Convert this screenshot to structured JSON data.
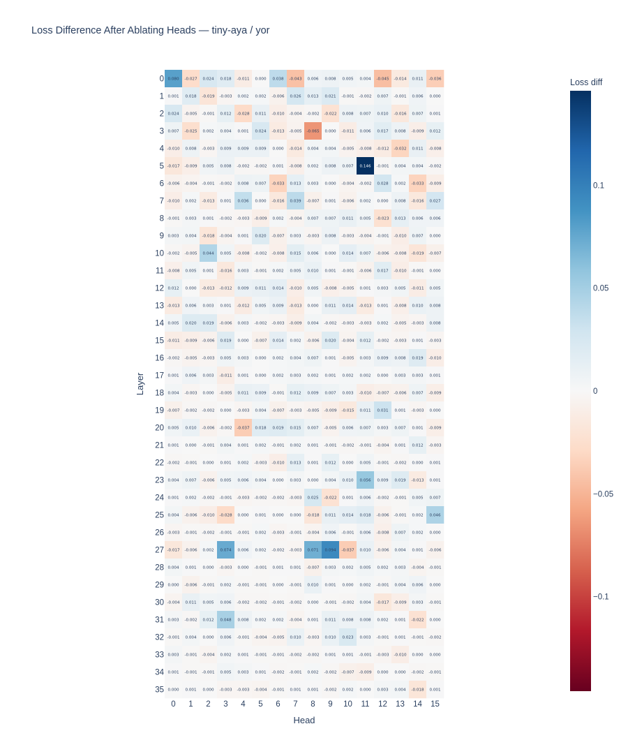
{
  "chart_data": {
    "type": "heatmap",
    "title": "Loss Difference After Ablating Heads — tiny-aya / yor",
    "xlabel": "Head",
    "ylabel": "Layer",
    "x": [
      "0",
      "1",
      "2",
      "3",
      "4",
      "5",
      "6",
      "7",
      "8",
      "9",
      "10",
      "11",
      "12",
      "13",
      "14",
      "15"
    ],
    "y": [
      "0",
      "1",
      "2",
      "3",
      "4",
      "5",
      "6",
      "7",
      "8",
      "9",
      "10",
      "11",
      "12",
      "13",
      "14",
      "15",
      "16",
      "17",
      "18",
      "19",
      "20",
      "21",
      "22",
      "23",
      "24",
      "25",
      "26",
      "27",
      "28",
      "29",
      "30",
      "31",
      "32",
      "33",
      "34",
      "35"
    ],
    "z": [
      [
        0.08,
        -0.027,
        0.024,
        0.018,
        -0.011,
        0.0,
        0.038,
        -0.043,
        0.006,
        0.008,
        0.005,
        0.004,
        -0.045,
        -0.014,
        0.011,
        -0.036
      ],
      [
        0.001,
        0.018,
        -0.019,
        -0.003,
        0.002,
        0.002,
        -0.006,
        0.026,
        0.013,
        0.021,
        -0.001,
        -0.002,
        0.007,
        -0.001,
        0.006,
        0.0
      ],
      [
        0.024,
        -0.005,
        -0.001,
        0.012,
        -0.028,
        0.011,
        -0.01,
        -0.004,
        -0.002,
        -0.022,
        0.008,
        0.007,
        0.01,
        -0.016,
        0.007,
        0.001
      ],
      [
        0.007,
        -0.025,
        0.002,
        0.004,
        0.001,
        0.024,
        -0.013,
        -0.005,
        -0.065,
        0.0,
        -0.011,
        0.006,
        0.017,
        0.008,
        -0.009,
        0.012
      ],
      [
        -0.01,
        0.008,
        -0.003,
        0.009,
        0.009,
        0.009,
        0.0,
        -0.014,
        0.004,
        0.004,
        -0.005,
        -0.008,
        -0.012,
        -0.032,
        0.011,
        -0.008
      ],
      [
        -0.017,
        -0.009,
        0.005,
        0.008,
        -0.002,
        -0.002,
        0.001,
        -0.008,
        0.002,
        0.008,
        0.007,
        0.146,
        -0.001,
        0.004,
        0.004,
        -0.002
      ],
      [
        -0.006,
        -0.004,
        -0.001,
        -0.002,
        0.008,
        0.007,
        -0.033,
        0.013,
        0.003,
        0.0,
        -0.004,
        -0.002,
        0.028,
        0.002,
        -0.033,
        -0.009
      ],
      [
        -0.01,
        0.002,
        -0.013,
        0.001,
        0.036,
        0.0,
        -0.016,
        0.039,
        -0.007,
        0.001,
        -0.006,
        0.002,
        0.0,
        0.008,
        -0.016,
        0.027
      ],
      [
        -0.001,
        0.003,
        0.001,
        -0.002,
        -0.003,
        -0.009,
        0.002,
        -0.004,
        0.007,
        0.007,
        0.011,
        0.005,
        -0.023,
        0.013,
        0.006,
        0.006
      ],
      [
        0.003,
        0.004,
        -0.018,
        -0.004,
        0.001,
        0.02,
        -0.007,
        0.003,
        -0.003,
        0.008,
        -0.003,
        -0.004,
        -0.001,
        -0.01,
        0.007,
        0.0
      ],
      [
        -0.002,
        -0.005,
        0.044,
        0.005,
        -0.008,
        -0.002,
        -0.008,
        0.015,
        0.006,
        0.0,
        0.014,
        0.007,
        -0.006,
        -0.008,
        -0.019,
        -0.007
      ],
      [
        -0.008,
        0.005,
        0.001,
        -0.016,
        0.003,
        -0.001,
        0.002,
        0.005,
        0.01,
        0.001,
        -0.001,
        -0.006,
        0.017,
        -0.01,
        -0.001,
        0.0
      ],
      [
        0.012,
        0.0,
        -0.013,
        -0.012,
        0.009,
        0.011,
        0.014,
        -0.01,
        0.005,
        -0.008,
        -0.005,
        0.001,
        0.003,
        0.005,
        -0.011,
        0.005
      ],
      [
        -0.013,
        0.006,
        0.003,
        0.001,
        -0.012,
        0.005,
        0.009,
        -0.013,
        0.0,
        0.011,
        0.014,
        -0.013,
        0.001,
        -0.008,
        0.01,
        0.008
      ],
      [
        0.005,
        0.02,
        0.019,
        -0.006,
        0.003,
        -0.002,
        -0.003,
        -0.009,
        0.004,
        -0.002,
        -0.003,
        -0.003,
        0.002,
        -0.005,
        -0.003,
        0.008
      ],
      [
        -0.011,
        -0.009,
        -0.006,
        0.019,
        0.0,
        -0.007,
        0.014,
        0.002,
        -0.006,
        0.02,
        -0.004,
        0.012,
        -0.002,
        -0.003,
        0.001,
        -0.003
      ],
      [
        -0.002,
        -0.005,
        -0.003,
        0.005,
        0.003,
        0.0,
        0.002,
        0.004,
        0.007,
        0.001,
        -0.005,
        0.003,
        0.009,
        0.008,
        0.019,
        -0.01
      ],
      [
        0.001,
        0.006,
        0.003,
        -0.011,
        0.001,
        0.0,
        0.002,
        0.003,
        0.002,
        0.001,
        0.002,
        0.002,
        0.0,
        0.003,
        0.003,
        0.001
      ],
      [
        0.004,
        -0.003,
        0.0,
        -0.005,
        0.011,
        0.009,
        -0.001,
        0.012,
        0.009,
        0.007,
        0.003,
        -0.01,
        -0.007,
        -0.006,
        0.007,
        -0.009
      ],
      [
        -0.007,
        -0.002,
        -0.002,
        0.0,
        -0.003,
        0.004,
        -0.007,
        -0.003,
        -0.005,
        -0.009,
        -0.015,
        0.011,
        0.031,
        0.001,
        -0.003,
        0.0
      ],
      [
        0.005,
        0.01,
        -0.006,
        -0.002,
        -0.037,
        0.018,
        0.019,
        0.015,
        0.007,
        -0.005,
        0.006,
        0.007,
        0.003,
        0.007,
        0.001,
        -0.009
      ],
      [
        0.001,
        0.0,
        -0.001,
        0.004,
        0.001,
        0.002,
        -0.001,
        0.002,
        0.001,
        -0.001,
        -0.002,
        -0.001,
        -0.004,
        0.001,
        0.012,
        -0.003
      ],
      [
        -0.002,
        -0.001,
        0.0,
        0.001,
        0.002,
        -0.003,
        -0.01,
        0.013,
        0.001,
        0.012,
        0.0,
        0.005,
        -0.001,
        -0.002,
        0.0,
        0.001
      ],
      [
        0.004,
        0.007,
        -0.006,
        0.005,
        0.006,
        0.004,
        0.0,
        0.003,
        0.0,
        0.004,
        0.01,
        0.056,
        0.009,
        0.019,
        -0.013,
        0.001
      ],
      [
        0.001,
        0.002,
        -0.002,
        -0.001,
        -0.003,
        -0.002,
        -0.002,
        -0.003,
        0.025,
        -0.022,
        0.001,
        0.006,
        -0.002,
        -0.001,
        0.005,
        0.007
      ],
      [
        0.004,
        -0.006,
        -0.01,
        -0.028,
        0.0,
        0.001,
        0.0,
        0.0,
        -0.018,
        0.011,
        0.014,
        0.018,
        -0.006,
        -0.001,
        0.002,
        0.046
      ],
      [
        -0.003,
        -0.001,
        -0.002,
        -0.001,
        -0.001,
        0.002,
        -0.003,
        -0.001,
        -0.004,
        0.006,
        -0.001,
        0.006,
        -0.008,
        0.007,
        0.002,
        0.0
      ],
      [
        -0.017,
        -0.006,
        0.002,
        0.074,
        0.006,
        0.002,
        -0.002,
        -0.003,
        0.071,
        0.094,
        -0.037,
        0.01,
        -0.006,
        0.004,
        0.001,
        -0.006
      ],
      [
        0.004,
        0.001,
        0.0,
        -0.003,
        0.0,
        -0.001,
        0.001,
        0.001,
        -0.007,
        0.003,
        0.002,
        0.005,
        0.002,
        0.003,
        -0.004,
        -0.001
      ],
      [
        0.0,
        -0.006,
        -0.001,
        0.002,
        -0.001,
        -0.001,
        0.0,
        -0.001,
        0.01,
        0.001,
        0.0,
        0.002,
        -0.001,
        0.004,
        0.006,
        0.0
      ],
      [
        -0.004,
        0.011,
        0.005,
        0.006,
        -0.002,
        -0.002,
        -0.001,
        -0.002,
        0.0,
        -0.001,
        -0.002,
        0.004,
        -0.017,
        -0.009,
        0.003,
        -0.001
      ],
      [
        0.003,
        -0.002,
        0.012,
        0.048,
        0.008,
        0.002,
        0.002,
        -0.004,
        0.001,
        0.011,
        0.008,
        0.008,
        0.002,
        0.001,
        -0.022,
        0.0
      ],
      [
        -0.001,
        0.004,
        0.0,
        0.006,
        -0.001,
        -0.004,
        -0.005,
        0.01,
        -0.003,
        0.01,
        0.023,
        0.003,
        -0.001,
        0.001,
        -0.001,
        -0.002
      ],
      [
        0.003,
        -0.001,
        -0.004,
        0.002,
        0.001,
        -0.001,
        -0.001,
        -0.002,
        -0.002,
        0.001,
        0.001,
        -0.001,
        -0.003,
        -0.01,
        0.0,
        0.0
      ],
      [
        0.001,
        -0.001,
        -0.001,
        0.005,
        0.003,
        0.001,
        -0.002,
        -0.001,
        0.002,
        -0.002,
        -0.007,
        -0.009,
        0.0,
        0.0,
        -0.002,
        -0.001
      ],
      [
        0.0,
        0.001,
        0.0,
        -0.003,
        -0.003,
        -0.004,
        -0.001,
        0.001,
        0.001,
        -0.002,
        0.002,
        0.0,
        0.003,
        0.004,
        -0.018,
        0.001
      ]
    ],
    "colorscale": "RdBu",
    "zmin": -0.146,
    "zmax": 0.146,
    "colorbar": {
      "title": "Loss diff",
      "ticks": [
        0.1,
        0.05,
        0,
        -0.05,
        -0.1
      ],
      "tick_labels": [
        "0.1",
        "0.05",
        "0",
        "−0.05",
        "−0.1"
      ]
    },
    "grid": false,
    "legend": "none"
  }
}
